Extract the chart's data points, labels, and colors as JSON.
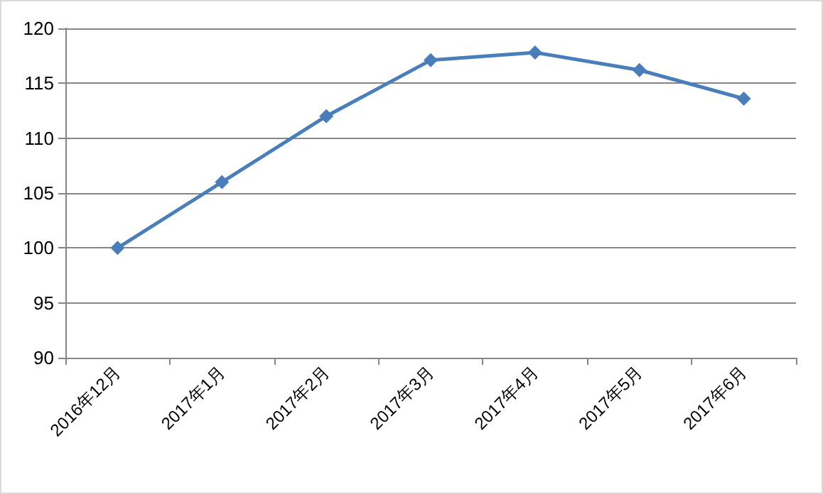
{
  "chart_data": {
    "type": "line",
    "categories": [
      "2016年12月",
      "2017年1月",
      "2017年2月",
      "2017年3月",
      "2017年4月",
      "2017年5月",
      "2017年6月"
    ],
    "series": [
      {
        "color": "#4a7ebb",
        "values": [
          100,
          106,
          112,
          117.1,
          117.8,
          116.2,
          113.6
        ]
      }
    ],
    "ylim": [
      90,
      120
    ],
    "yticks": [
      90,
      95,
      100,
      105,
      110,
      115,
      120
    ],
    "grid": "y",
    "marker": "diamond",
    "line_style": "solid"
  }
}
